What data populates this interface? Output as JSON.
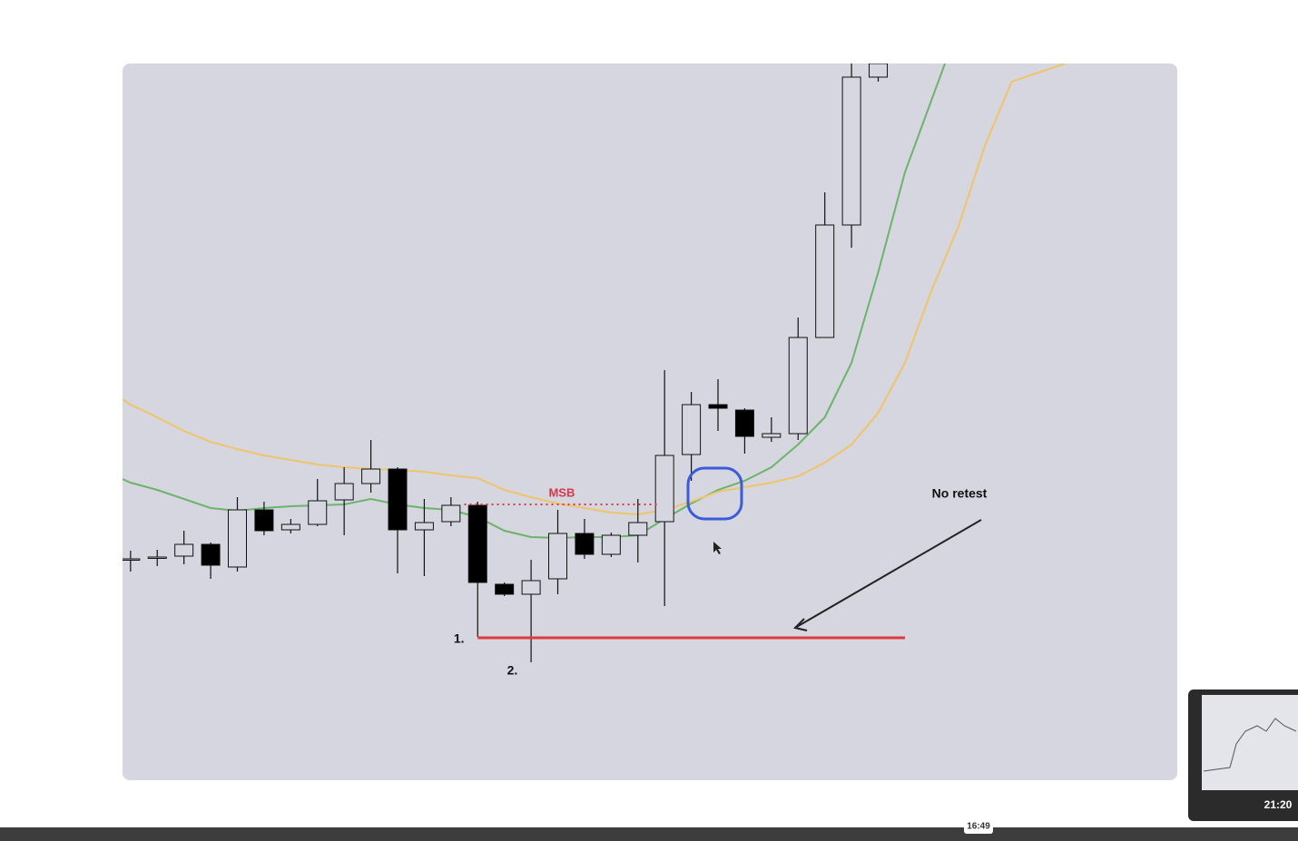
{
  "chart_data": {
    "type": "candlestick",
    "x": [
      0,
      1,
      2,
      3,
      4,
      5,
      6,
      7,
      8,
      9,
      10,
      11,
      12,
      13,
      14,
      15,
      16,
      17,
      18,
      19,
      20,
      21,
      22,
      23,
      24,
      25,
      26,
      27,
      28
    ],
    "open": [
      24.3,
      24.6,
      24.7,
      26.0,
      23.5,
      29.8,
      27.6,
      28.2,
      30.9,
      32.7,
      34.3,
      27.6,
      28.5,
      30.3,
      21.6,
      20.5,
      22.2,
      27.2,
      24.9,
      27.0,
      28.5,
      35.9,
      41.4,
      40.8,
      37.8,
      38.2,
      48.8,
      61.2,
      77.5
    ],
    "high": [
      25.3,
      25.4,
      27.5,
      26.2,
      31.2,
      30.7,
      28.8,
      33.2,
      34.5,
      37.5,
      34.5,
      31.0,
      31.2,
      30.7,
      21.8,
      24.3,
      29.8,
      28.8,
      27.3,
      31.0,
      45.2,
      42.8,
      44.2,
      41.0,
      40.0,
      51.0,
      64.8,
      79.0,
      79.0
    ],
    "low": [
      23.0,
      23.6,
      23.8,
      22.2,
      23.0,
      27.0,
      27.2,
      28.0,
      27.0,
      31.7,
      22.8,
      22.5,
      28.0,
      15.8,
      20.3,
      13.0,
      20.5,
      24.4,
      24.6,
      24.0,
      19.2,
      33.0,
      38.5,
      36.0,
      37.3,
      37.5,
      48.8,
      58.7,
      77.0
    ],
    "close": [
      24.4,
      24.6,
      26.0,
      23.7,
      29.8,
      27.5,
      28.2,
      30.8,
      32.7,
      34.3,
      27.6,
      28.4,
      30.3,
      21.8,
      20.5,
      22.0,
      27.2,
      24.9,
      27.0,
      28.4,
      35.8,
      41.4,
      41.0,
      37.9,
      38.2,
      48.8,
      61.2,
      77.5,
      79.0
    ],
    "up_color": "#d5d6df",
    "down_color": "#000000",
    "series": [
      {
        "color": "#6cb46a",
        "x": [
          -0.3,
          0,
          1,
          2,
          3,
          4,
          5,
          6,
          7,
          8,
          9,
          10,
          11,
          12,
          13,
          14,
          15,
          16,
          17,
          18,
          19,
          20,
          21,
          22,
          23,
          24,
          25,
          26,
          27,
          28,
          29,
          30.5
        ],
        "values": [
          33.2,
          32.8,
          32.0,
          31.0,
          30.0,
          29.7,
          30.0,
          30.2,
          30.3,
          30.4,
          31.0,
          30.4,
          30.0,
          29.8,
          29.0,
          27.5,
          26.8,
          26.7,
          26.8,
          26.8,
          27.0,
          28.8,
          30.5,
          32.0,
          33.0,
          34.5,
          37.0,
          40.0,
          46.0,
          56.0,
          67.0,
          79.0
        ]
      },
      {
        "color": "#efc46a",
        "x": [
          -0.3,
          0,
          1,
          2,
          3,
          4,
          5,
          6,
          7,
          8,
          9,
          10,
          11,
          12,
          13,
          14,
          15,
          16,
          17,
          18,
          19,
          20,
          21,
          22,
          23,
          24,
          25,
          26,
          27,
          28,
          29,
          30,
          31,
          32,
          33,
          34,
          35
        ],
        "values": [
          42.0,
          41.4,
          40.0,
          38.5,
          37.3,
          36.5,
          35.8,
          35.3,
          34.8,
          34.5,
          34.3,
          34.2,
          34.0,
          33.6,
          33.3,
          32.0,
          31.2,
          30.5,
          30.0,
          29.5,
          29.3,
          29.8,
          30.7,
          31.8,
          32.3,
          32.8,
          33.5,
          35.0,
          37.0,
          40.5,
          46.0,
          54.0,
          61.0,
          70.0,
          77.0,
          78.0,
          79.0
        ]
      }
    ],
    "levels": [
      {
        "label": "MSB",
        "value": 30.4,
        "x": [
          12.5,
          19.8
        ],
        "color": "#d9364a",
        "style": "dotted"
      },
      {
        "value": 15.7,
        "x": [
          13,
          29
        ],
        "color": "#e03a3a",
        "style": "solid"
      }
    ],
    "point_labels": [
      {
        "text": "1.",
        "x": 12.3,
        "y": 15.5
      },
      {
        "text": "2.",
        "x": 14.3,
        "y": 12.0
      }
    ],
    "annotation": "No retest",
    "xlim": [
      -0.3,
      39.2
    ],
    "ylim": [
      0,
      79
    ]
  },
  "player": {
    "hover_time": "16:49",
    "preview_time": "21:20"
  }
}
